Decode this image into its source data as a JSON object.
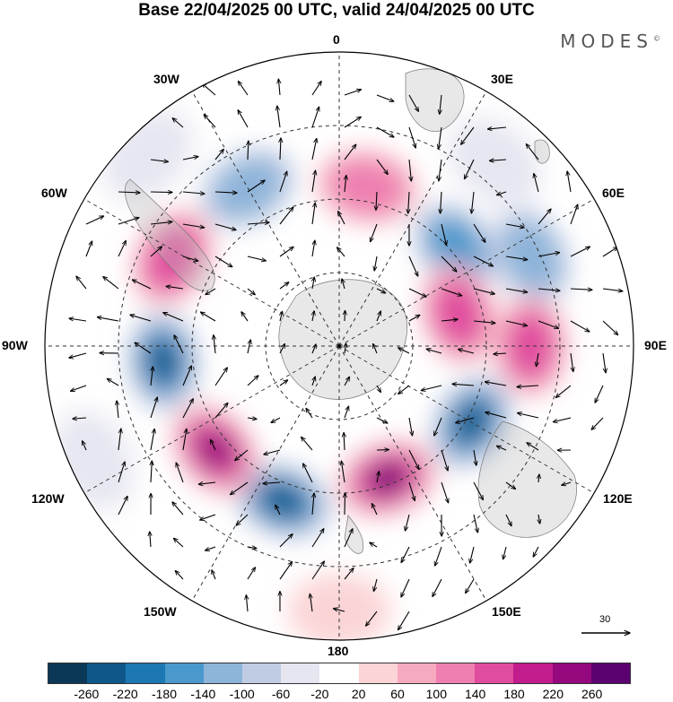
{
  "title": "Base 22/04/2025 00 UTC, valid 24/04/2025 00 UTC",
  "brand": "MODES",
  "brand_mark": "©",
  "meridian_labels": {
    "top": "0",
    "top_left": "30W",
    "top_right": "30E",
    "upper_left": "60W",
    "upper_right": "60E",
    "left": "90W",
    "right": "90E",
    "lower_left": "120W",
    "lower_right": "120E",
    "bottom_left": "150W",
    "bottom_right": "150E",
    "bottom": "180"
  },
  "reference_vector": "30",
  "colorbar": {
    "colors": [
      "#0c3857",
      "#0e5788",
      "#1d77b3",
      "#4a98cc",
      "#8db4d9",
      "#c0cbe4",
      "#e6e6f1",
      "#ffffff",
      "#fbd4d6",
      "#f6aabf",
      "#ee7fb0",
      "#e04c9e",
      "#c31c8d",
      "#94097d",
      "#5c0270"
    ],
    "tick_labels": [
      "-260",
      "-220",
      "-180",
      "-140",
      "-100",
      "-60",
      "-20",
      "20",
      "60",
      "100",
      "140",
      "180",
      "220",
      "260"
    ]
  },
  "map": {
    "anomaly_cells": [
      {
        "lon": 330,
        "r": 0.62,
        "sign": -1,
        "strength": 3
      },
      {
        "lon": 10,
        "r": 0.55,
        "sign": 1,
        "strength": 3
      },
      {
        "lon": 40,
        "r": 0.82,
        "sign": -1,
        "strength": 1
      },
      {
        "lon": 50,
        "r": 0.52,
        "sign": -1,
        "strength": 4
      },
      {
        "lon": 65,
        "r": 0.72,
        "sign": -1,
        "strength": 3
      },
      {
        "lon": 75,
        "r": 0.42,
        "sign": 1,
        "strength": 4
      },
      {
        "lon": 90,
        "r": 0.65,
        "sign": 1,
        "strength": 4
      },
      {
        "lon": 120,
        "r": 0.52,
        "sign": -1,
        "strength": 6
      },
      {
        "lon": 160,
        "r": 0.48,
        "sign": 1,
        "strength": 7
      },
      {
        "lon": 200,
        "r": 0.56,
        "sign": -1,
        "strength": 6
      },
      {
        "lon": 230,
        "r": 0.55,
        "sign": 1,
        "strength": 6
      },
      {
        "lon": 265,
        "r": 0.6,
        "sign": -1,
        "strength": 6
      },
      {
        "lon": 298,
        "r": 0.64,
        "sign": 1,
        "strength": 4
      },
      {
        "lon": 315,
        "r": 0.92,
        "sign": -1,
        "strength": 1
      },
      {
        "lon": 245,
        "r": 0.92,
        "sign": -1,
        "strength": 1
      },
      {
        "lon": 180,
        "r": 0.9,
        "sign": 1,
        "strength": 1
      }
    ]
  }
}
